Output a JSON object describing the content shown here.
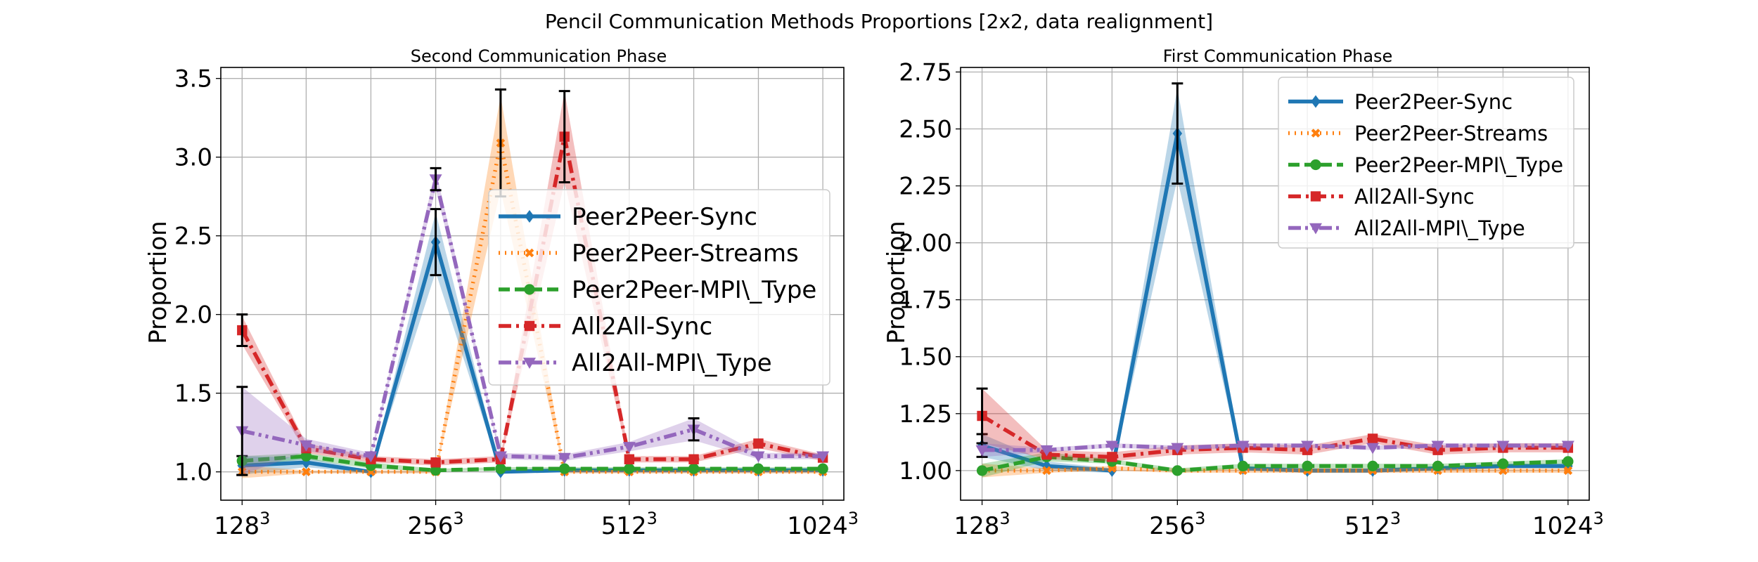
{
  "figure": {
    "title": "Pencil Communication Methods Proportions [2x2, data realignment]"
  },
  "colors": {
    "Peer2Peer-Sync": "#1f77b4",
    "Peer2Peer-Streams": "#ff7f0e",
    "Peer2Peer-MPI\\_Type": "#2ca02c",
    "All2All-Sync": "#d62728",
    "All2All-MPI\\_Type": "#9467bd",
    "grid": "#b0b0b0"
  },
  "chart_data": [
    {
      "type": "line",
      "title": "Second Communication Phase",
      "xlabel": "",
      "ylabel": "Proportion",
      "xscale": "log2",
      "x": [
        128,
        161,
        203,
        256,
        323,
        406,
        512,
        645,
        813,
        1024
      ],
      "xlim": [
        118.6,
        1104
      ],
      "xticks": [
        128,
        256,
        512,
        1024
      ],
      "xtick_labels": [
        "128",
        "256",
        "512",
        "1024"
      ],
      "xtick_exponent": "3",
      "ylim": [
        0.82,
        3.57
      ],
      "yticks": [
        1.0,
        1.5,
        2.0,
        2.5,
        3.0,
        3.5
      ],
      "ytick_labels": [
        "1.0",
        "1.5",
        "2.0",
        "2.5",
        "3.0",
        "3.5"
      ],
      "grid": true,
      "legend": {
        "placement": "center-right",
        "size": "large"
      },
      "series": [
        {
          "name": "Peer2Peer-Sync",
          "marker": "diamond",
          "dash": "solid",
          "values": [
            1.04,
            1.06,
            1.0,
            2.46,
            1.0,
            1.01,
            1.01,
            1.01,
            1.01,
            1.01
          ],
          "band": [
            0.06,
            0.03,
            0.01,
            0.19,
            0.01,
            0.01,
            0.01,
            0.01,
            0.01,
            0.01
          ],
          "errorbars": [
            [
              128,
              1.04,
              0.06
            ],
            [
              256,
              2.46,
              0.21
            ]
          ]
        },
        {
          "name": "Peer2Peer-Streams",
          "marker": "x",
          "dash": "dotted",
          "values": [
            1.0,
            1.0,
            1.0,
            1.0,
            3.09,
            1.0,
            1.0,
            1.0,
            1.0,
            1.0
          ],
          "band": [
            0.04,
            0.01,
            0.01,
            0.01,
            0.3,
            0.01,
            0.01,
            0.01,
            0.01,
            0.01
          ],
          "errorbars": [
            [
              323,
              3.09,
              0.34
            ]
          ]
        },
        {
          "name": "Peer2Peer-MPI\\_Type",
          "marker": "circle",
          "dash": "dashed",
          "values": [
            1.07,
            1.1,
            1.04,
            1.01,
            1.02,
            1.02,
            1.02,
            1.02,
            1.02,
            1.02
          ],
          "band": [
            0.03,
            0.02,
            0.02,
            0.01,
            0.01,
            0.01,
            0.01,
            0.01,
            0.01,
            0.01
          ],
          "errorbars": []
        },
        {
          "name": "All2All-Sync",
          "marker": "square",
          "dash": "dashdot",
          "values": [
            1.9,
            1.15,
            1.08,
            1.06,
            1.08,
            3.13,
            1.08,
            1.08,
            1.18,
            1.09
          ],
          "band": [
            0.09,
            0.03,
            0.02,
            0.02,
            0.02,
            0.29,
            0.02,
            0.02,
            0.03,
            0.02
          ],
          "errorbars": [
            [
              128,
              1.9,
              0.1
            ],
            [
              406,
              3.13,
              0.29
            ]
          ]
        },
        {
          "name": "All2All-MPI\\_Type",
          "marker": "triangle-down",
          "dash": "dashdotdot",
          "values": [
            1.26,
            1.17,
            1.1,
            2.86,
            1.1,
            1.09,
            1.16,
            1.27,
            1.1,
            1.1
          ],
          "band": [
            0.28,
            0.04,
            0.02,
            0.06,
            0.02,
            0.02,
            0.03,
            0.07,
            0.02,
            0.02
          ],
          "errorbars": [
            [
              128,
              1.26,
              0.28
            ],
            [
              256,
              2.86,
              0.07
            ],
            [
              645,
              1.27,
              0.07
            ]
          ]
        }
      ]
    },
    {
      "type": "line",
      "title": "First Communication Phase",
      "xlabel": "",
      "ylabel": "Proportion",
      "xscale": "log2",
      "x": [
        128,
        161,
        203,
        256,
        323,
        406,
        512,
        645,
        813,
        1024
      ],
      "xlim": [
        118.6,
        1104
      ],
      "xticks": [
        128,
        256,
        512,
        1024
      ],
      "xtick_labels": [
        "128",
        "256",
        "512",
        "1024"
      ],
      "xtick_exponent": "3",
      "ylim": [
        0.87,
        2.77
      ],
      "yticks": [
        1.0,
        1.25,
        1.5,
        1.75,
        2.0,
        2.25,
        2.5,
        2.75
      ],
      "ytick_labels": [
        "1.00",
        "1.25",
        "1.50",
        "1.75",
        "2.00",
        "2.25",
        "2.50",
        "2.75"
      ],
      "grid": true,
      "legend": {
        "placement": "upper-right",
        "size": "medium"
      },
      "series": [
        {
          "name": "Peer2Peer-Sync",
          "marker": "diamond",
          "dash": "solid",
          "values": [
            1.11,
            1.02,
            1.0,
            2.48,
            1.01,
            1.0,
            1.0,
            1.01,
            1.02,
            1.02
          ],
          "band": [
            0.05,
            0.02,
            0.01,
            0.2,
            0.01,
            0.01,
            0.01,
            0.01,
            0.01,
            0.01
          ],
          "errorbars": [
            [
              128,
              1.11,
              0.05
            ],
            [
              256,
              2.48,
              0.22
            ]
          ]
        },
        {
          "name": "Peer2Peer-Streams",
          "marker": "x",
          "dash": "dotted",
          "values": [
            1.0,
            1.0,
            1.01,
            1.0,
            1.0,
            1.0,
            1.0,
            1.0,
            1.0,
            1.0
          ],
          "band": [
            0.03,
            0.01,
            0.01,
            0.01,
            0.01,
            0.01,
            0.01,
            0.01,
            0.01,
            0.01
          ],
          "errorbars": []
        },
        {
          "name": "Peer2Peer-MPI\\_Type",
          "marker": "circle",
          "dash": "dashed",
          "values": [
            1.0,
            1.06,
            1.04,
            1.0,
            1.02,
            1.02,
            1.02,
            1.02,
            1.03,
            1.04
          ],
          "band": [
            0.03,
            0.02,
            0.01,
            0.01,
            0.01,
            0.01,
            0.01,
            0.01,
            0.01,
            0.01
          ],
          "errorbars": []
        },
        {
          "name": "All2All-Sync",
          "marker": "square",
          "dash": "dashdot",
          "values": [
            1.24,
            1.07,
            1.06,
            1.09,
            1.1,
            1.09,
            1.14,
            1.09,
            1.1,
            1.1
          ],
          "band": [
            0.12,
            0.02,
            0.02,
            0.02,
            0.02,
            0.02,
            0.02,
            0.02,
            0.02,
            0.02
          ],
          "errorbars": [
            [
              128,
              1.24,
              0.12
            ]
          ]
        },
        {
          "name": "All2All-MPI\\_Type",
          "marker": "triangle-down",
          "dash": "dashdotdot",
          "values": [
            1.09,
            1.09,
            1.11,
            1.1,
            1.11,
            1.11,
            1.1,
            1.11,
            1.11,
            1.11
          ],
          "band": [
            0.03,
            0.01,
            0.01,
            0.01,
            0.01,
            0.01,
            0.01,
            0.01,
            0.01,
            0.01
          ],
          "errorbars": []
        }
      ]
    }
  ]
}
